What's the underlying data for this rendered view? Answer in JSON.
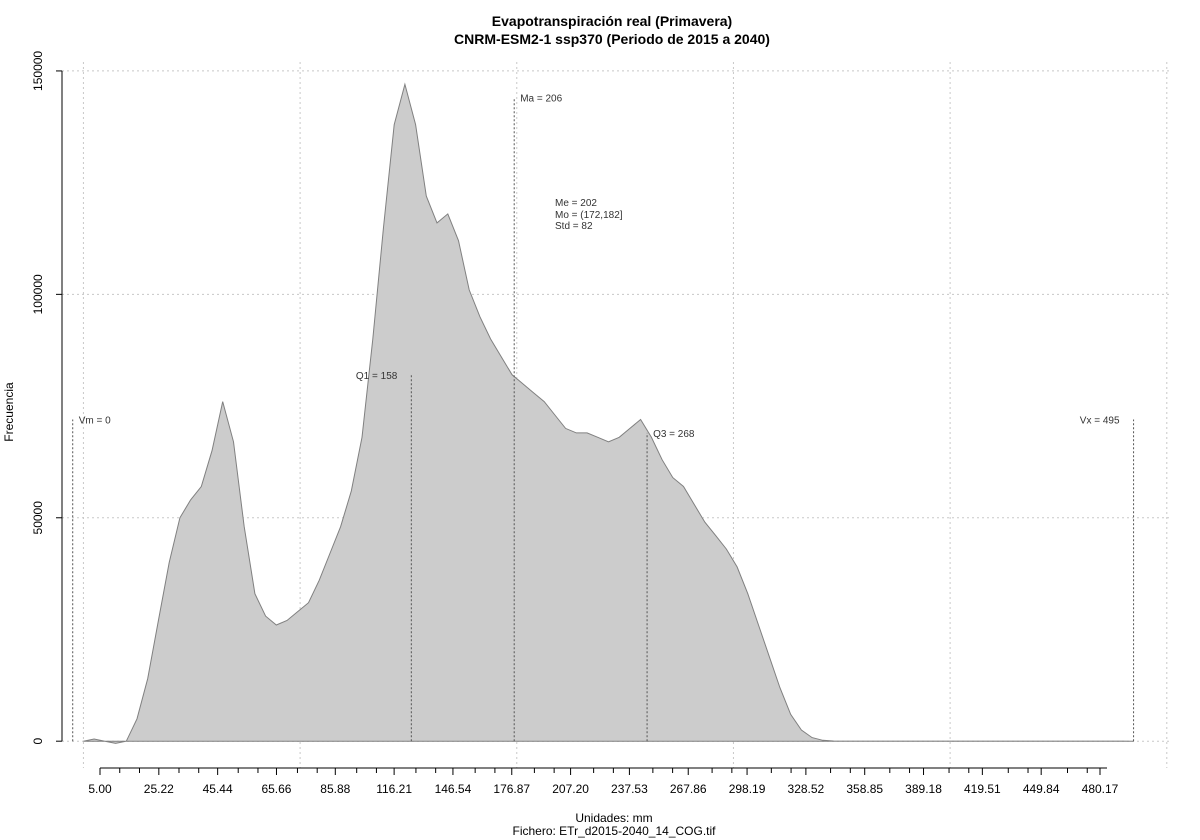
{
  "chart_data": {
    "type": "area",
    "title": "Evapotranspiración real (Primavera)",
    "subtitle": "CNRM-ESM2-1 ssp370 (Periodo de 2015 a 2040)",
    "xlabel": "Unidades: mm",
    "ylabel": "Frecuencia",
    "caption": "Fichero: ETr_d2015-2040_14_COG.tif",
    "xlim": [
      -5,
      512
    ],
    "ylim": [
      -6000,
      152000
    ],
    "x_tick_labels": [
      "5.00",
      "25.22",
      "45.44",
      "65.66",
      "85.88",
      "116.21",
      "146.54",
      "176.87",
      "207.20",
      "237.53",
      "267.86",
      "298.19",
      "328.52",
      "358.85",
      "389.18",
      "419.51",
      "449.84",
      "480.17"
    ],
    "y_ticks": [
      0,
      50000,
      100000,
      150000
    ],
    "y_tick_labels": [
      "0",
      "50000",
      "100000",
      "150000"
    ],
    "x_grid": [
      5.0,
      106.1,
      207.2,
      308.3,
      409.4,
      510.5
    ],
    "y_grid": [
      0,
      50000,
      100000,
      150000
    ],
    "fill_color": "#cccccc",
    "line_color": "#808080",
    "grid": true,
    "series": [
      {
        "x": [
          5,
          10,
          15,
          20,
          25,
          30,
          35,
          40,
          45,
          50,
          55,
          60,
          65,
          70,
          75,
          80,
          85,
          90,
          95,
          100,
          105,
          110,
          115,
          120,
          125,
          130,
          135,
          140,
          145,
          150,
          155,
          160,
          165,
          170,
          175,
          180,
          185,
          190,
          195,
          200,
          205,
          210,
          215,
          220,
          225,
          230,
          235,
          240,
          245,
          250,
          255,
          260,
          265,
          270,
          275,
          280,
          285,
          290,
          295,
          300,
          305,
          310,
          315,
          320,
          325,
          330,
          335,
          340,
          345,
          350,
          355,
          360,
          365,
          370,
          375,
          380,
          385,
          390,
          395,
          400,
          410,
          420,
          430,
          440,
          450,
          460,
          470,
          480,
          490,
          495
        ],
        "y": [
          0,
          500,
          0,
          -500,
          0,
          5000,
          14000,
          27000,
          40000,
          50000,
          54000,
          57000,
          65000,
          76000,
          67000,
          48000,
          33000,
          28000,
          26000,
          27000,
          29000,
          31000,
          36000,
          42000,
          48000,
          56000,
          68000,
          90000,
          115000,
          138000,
          147000,
          138000,
          122000,
          116000,
          118000,
          112000,
          101000,
          95000,
          90000,
          86000,
          82000,
          80000,
          78000,
          76000,
          73000,
          70000,
          69000,
          69000,
          68000,
          67000,
          68000,
          70000,
          72000,
          68000,
          63000,
          59000,
          57000,
          53000,
          49000,
          46000,
          43000,
          39000,
          33000,
          26000,
          19000,
          12000,
          6000,
          2500,
          800,
          200,
          50,
          20,
          10,
          10,
          10,
          10,
          10,
          10,
          10,
          10,
          10,
          10,
          10,
          10,
          10,
          10,
          10,
          10,
          10,
          0
        ]
      }
    ],
    "markers": [
      {
        "label": "Vm = 0",
        "x": 0,
        "y_top": 72000,
        "label_side": "right"
      },
      {
        "label": "Q1 = 158",
        "x": 158,
        "y_top": 82000,
        "label_side": "left"
      },
      {
        "label": "Ma = 206",
        "x": 206,
        "y_top": 144000,
        "label_side": "right"
      },
      {
        "label": "Q3 = 268",
        "x": 268,
        "y_top": 69000,
        "label_side": "right"
      },
      {
        "label": "Vx = 495",
        "x": 495,
        "y_top": 72000,
        "label_side": "left"
      }
    ],
    "stats": [
      "Me = 202",
      "Mo = (172,182]",
      "Std = 82"
    ]
  }
}
